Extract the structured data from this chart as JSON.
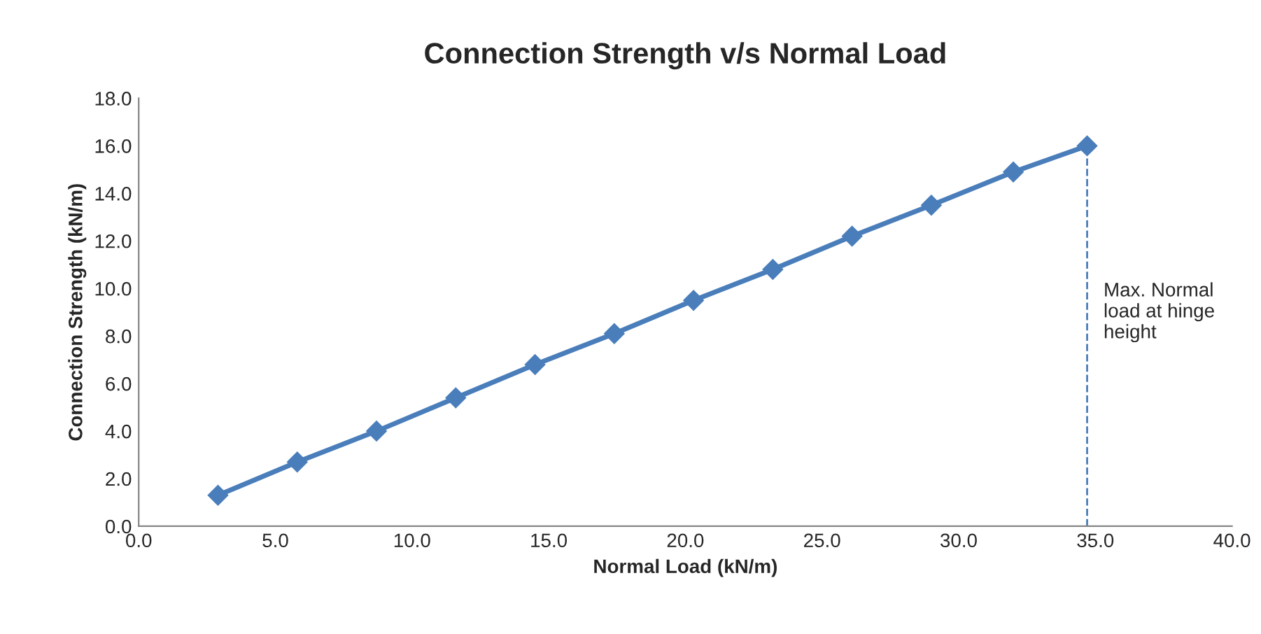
{
  "chart_data": {
    "type": "line",
    "title": "Connection Strength v/s Normal Load",
    "xlabel": "Normal Load (kN/m)",
    "ylabel": "Connection Strength (kN/m)",
    "x": [
      2.9,
      5.8,
      8.7,
      11.6,
      14.5,
      17.4,
      20.3,
      23.2,
      26.1,
      29.0,
      32.0,
      34.7
    ],
    "series": [
      {
        "color": "#4a7ebb",
        "values": [
          1.3,
          2.7,
          4.0,
          5.4,
          6.8,
          8.1,
          9.5,
          10.8,
          12.2,
          13.5,
          14.9,
          16.0
        ]
      }
    ],
    "marker": "diamond",
    "line_style": "solid",
    "grid": false,
    "xlim": [
      0,
      40
    ],
    "ylim": [
      0,
      18
    ],
    "xticks": [
      {
        "value": 0,
        "label": "0.0"
      },
      {
        "value": 5,
        "label": "5.0"
      },
      {
        "value": 10,
        "label": "10.0"
      },
      {
        "value": 15,
        "label": "15.0"
      },
      {
        "value": 20,
        "label": "20.0"
      },
      {
        "value": 25,
        "label": "25.0"
      },
      {
        "value": 30,
        "label": "30.0"
      },
      {
        "value": 35,
        "label": "35.0"
      },
      {
        "value": 40,
        "label": "40.0"
      }
    ],
    "yticks": [
      {
        "value": 0,
        "label": "0.0"
      },
      {
        "value": 2,
        "label": "2.0"
      },
      {
        "value": 4,
        "label": "4.0"
      },
      {
        "value": 6,
        "label": "6.0"
      },
      {
        "value": 8,
        "label": "8.0"
      },
      {
        "value": 10,
        "label": "10.0"
      },
      {
        "value": 12,
        "label": "12.0"
      },
      {
        "value": 14,
        "label": "14.0"
      },
      {
        "value": 16,
        "label": "16.0"
      },
      {
        "value": 18,
        "label": "18.0"
      }
    ],
    "ref_lines": [
      {
        "axis": "x",
        "value": 34.7,
        "label": "Max. Normal\nload at hinge\nheight",
        "color": "#4a7ebb",
        "line_style": "dashed"
      }
    ]
  }
}
